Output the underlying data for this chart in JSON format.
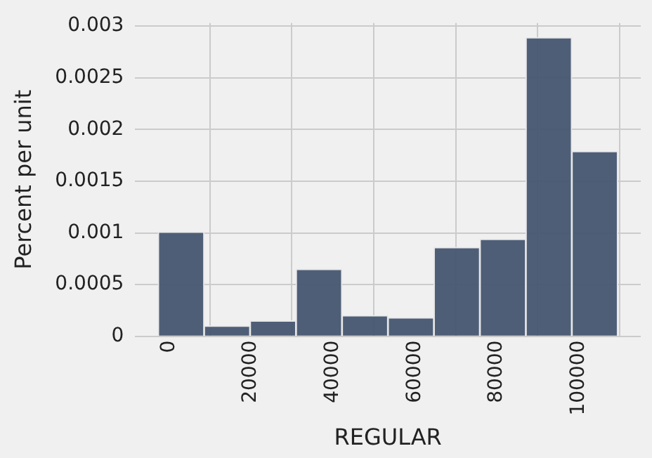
{
  "chart_data": {
    "type": "histogram",
    "xlabel": "REGULAR",
    "ylabel": "Percent per unit",
    "bins": [
      -2630,
      8590,
      19800,
      31020,
      42240,
      53460,
      64670,
      75890,
      87110,
      98320,
      109540
    ],
    "values": [
      0.00101,
      0.0001,
      0.00015,
      0.00065,
      0.0002,
      0.00018,
      0.00086,
      0.00094,
      0.00289,
      0.00179
    ],
    "color": "#44546e",
    "xlim": [
      -8240,
      115150
    ],
    "xticks": [
      0,
      20000,
      40000,
      60000,
      80000,
      100000
    ],
    "ylim": [
      0,
      0.00303
    ],
    "yticks": [
      0,
      0.0005,
      0.001,
      0.0015,
      0.002,
      0.0025,
      0.003
    ],
    "grid": true
  }
}
